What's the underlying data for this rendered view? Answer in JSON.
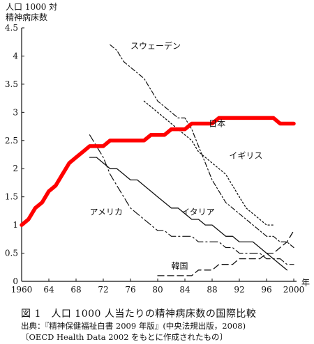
{
  "chart_data": {
    "type": "line",
    "ylabel_line1": "人口 1000 対",
    "ylabel_line2": "精神病床数",
    "xlabel": "年",
    "ylim": [
      0,
      4.5
    ],
    "xlim": [
      1960,
      2000
    ],
    "yticks": [
      0,
      0.5,
      1,
      1.5,
      2,
      2.5,
      3,
      3.5,
      4,
      4.5
    ],
    "ytick_labels": [
      "0",
      "0.5",
      "1",
      "1.5",
      "2",
      "2.5",
      "3",
      "3.5",
      "4",
      "4.5"
    ],
    "xticks": [
      1960,
      1964,
      1968,
      1972,
      1976,
      1980,
      1984,
      1988,
      1992,
      1996,
      2000
    ],
    "xtick_labels": [
      "1960",
      "64",
      "68",
      "72",
      "76",
      "80",
      "84",
      "88",
      "92",
      "96",
      "2000"
    ],
    "grid": false,
    "series": [
      {
        "name": "日本",
        "style": "thick-solid",
        "color": "#ff0000",
        "x": [
          1960,
          1961,
          1962,
          1963,
          1964,
          1965,
          1966,
          1967,
          1968,
          1969,
          1970,
          1971,
          1972,
          1973,
          1974,
          1975,
          1976,
          1977,
          1978,
          1979,
          1980,
          1981,
          1982,
          1983,
          1984,
          1985,
          1986,
          1987,
          1988,
          1989,
          1990,
          1991,
          1992,
          1993,
          1994,
          1995,
          1996,
          1997,
          1998,
          1999,
          2000
        ],
        "values": [
          1.0,
          1.1,
          1.3,
          1.4,
          1.6,
          1.7,
          1.9,
          2.1,
          2.2,
          2.3,
          2.4,
          2.4,
          2.4,
          2.5,
          2.5,
          2.5,
          2.5,
          2.5,
          2.5,
          2.6,
          2.6,
          2.6,
          2.7,
          2.7,
          2.7,
          2.8,
          2.8,
          2.8,
          2.8,
          2.9,
          2.9,
          2.9,
          2.9,
          2.9,
          2.9,
          2.9,
          2.9,
          2.9,
          2.8,
          2.8,
          2.8
        ]
      },
      {
        "name": "スウェーデン",
        "style": "dash-dot",
        "color": "#111111",
        "x": [
          1973,
          1974,
          1975,
          1976,
          1977,
          1978,
          1979,
          1980,
          1981,
          1982,
          1983,
          1984,
          1985,
          1986,
          1987,
          1988,
          1989,
          1990,
          1991,
          1992,
          1993,
          1994,
          1995,
          1996,
          1997,
          1998,
          1999,
          2000
        ],
        "values": [
          4.2,
          4.1,
          3.9,
          3.8,
          3.7,
          3.6,
          3.4,
          3.2,
          3.1,
          3.0,
          2.9,
          2.9,
          2.7,
          2.4,
          2.1,
          1.8,
          1.6,
          1.4,
          1.3,
          1.2,
          1.1,
          1.0,
          0.9,
          0.8,
          0.8,
          0.7,
          0.7,
          0.6
        ]
      },
      {
        "name": "イギリス",
        "style": "dotted",
        "color": "#111111",
        "x": [
          1978,
          1979,
          1980,
          1981,
          1982,
          1983,
          1984,
          1985,
          1986,
          1987,
          1988,
          1989,
          1990,
          1991,
          1992,
          1993,
          1994,
          1995,
          1996,
          1997
        ],
        "values": [
          3.2,
          3.1,
          3.0,
          2.9,
          2.8,
          2.7,
          2.6,
          2.5,
          2.3,
          2.2,
          2.1,
          2.0,
          1.9,
          1.7,
          1.5,
          1.3,
          1.2,
          1.1,
          1.0,
          1.0
        ]
      },
      {
        "name": "アメリカ",
        "style": "long-dash-dot",
        "color": "#111111",
        "x": [
          1970,
          1971,
          1972,
          1973,
          1974,
          1975,
          1976,
          1977,
          1978,
          1979,
          1980,
          1981,
          1982,
          1983,
          1984,
          1985,
          1986,
          1987,
          1988,
          1989,
          1990,
          1991,
          1992,
          1993,
          1994,
          1995,
          1996,
          1997,
          1998,
          1999,
          2000
        ],
        "values": [
          2.6,
          2.4,
          2.2,
          1.9,
          1.7,
          1.5,
          1.3,
          1.2,
          1.1,
          1.0,
          0.9,
          0.9,
          0.8,
          0.8,
          0.8,
          0.8,
          0.7,
          0.7,
          0.7,
          0.7,
          0.6,
          0.6,
          0.5,
          0.5,
          0.5,
          0.5,
          0.4,
          0.4,
          0.4,
          0.3,
          0.3
        ]
      },
      {
        "name": "イタリア",
        "style": "solid",
        "color": "#111111",
        "x": [
          1970,
          1971,
          1972,
          1973,
          1974,
          1975,
          1976,
          1977,
          1978,
          1979,
          1980,
          1981,
          1982,
          1983,
          1984,
          1985,
          1986,
          1987,
          1988,
          1989,
          1990,
          1991,
          1992,
          1993,
          1994,
          1995,
          1996,
          1997,
          1998,
          1999
        ],
        "values": [
          2.2,
          2.2,
          2.1,
          2.0,
          2.0,
          1.9,
          1.8,
          1.8,
          1.7,
          1.6,
          1.5,
          1.4,
          1.3,
          1.3,
          1.2,
          1.1,
          1.1,
          1.0,
          1.0,
          0.9,
          0.8,
          0.8,
          0.7,
          0.7,
          0.7,
          0.6,
          0.5,
          0.4,
          0.3,
          0.2
        ]
      },
      {
        "name": "韓国",
        "style": "dashed",
        "color": "#111111",
        "x": [
          1980,
          1981,
          1982,
          1983,
          1984,
          1985,
          1986,
          1987,
          1988,
          1989,
          1990,
          1991,
          1992,
          1993,
          1994,
          1995,
          1996,
          1997,
          1998,
          1999,
          2000
        ],
        "values": [
          0.1,
          0.1,
          0.1,
          0.1,
          0.1,
          0.1,
          0.2,
          0.2,
          0.2,
          0.3,
          0.3,
          0.3,
          0.4,
          0.4,
          0.4,
          0.4,
          0.5,
          0.5,
          0.6,
          0.7,
          0.9
        ]
      }
    ],
    "labels": [
      {
        "text": "スウェーデン",
        "series": "スウェーデン"
      },
      {
        "text": "日本",
        "series": "日本"
      },
      {
        "text": "イギリス",
        "series": "イギリス"
      },
      {
        "text": "アメリカ",
        "series": "アメリカ"
      },
      {
        "text": "イタリア",
        "series": "イタリア"
      },
      {
        "text": "韓国",
        "series": "韓国"
      }
    ]
  },
  "caption": {
    "title": "図 1　人口 1000 人当たりの精神病床数の国際比較",
    "source": "出典：『精神保健福祉白書 2009 年版』(中央法規出版，2008)",
    "note": "〔OECD Health Data 2002 をもとに作成されたもの〕"
  }
}
